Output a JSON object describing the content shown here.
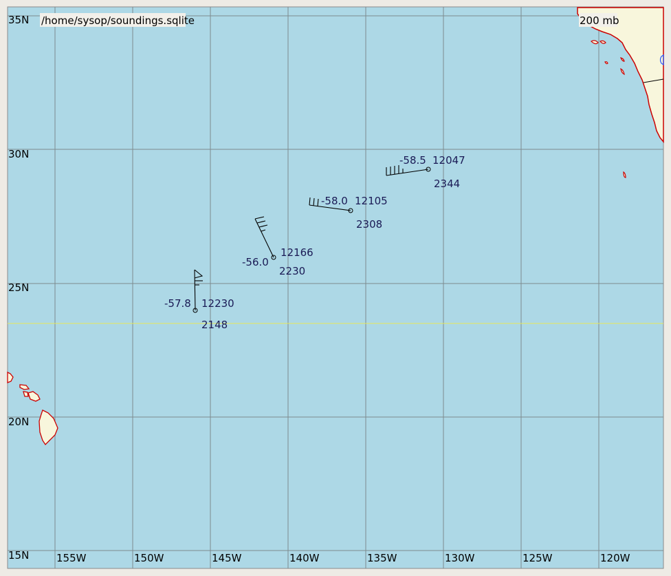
{
  "header": {
    "file_path": "/home/sysop/soundings.sqlite",
    "level": "200 mb"
  },
  "map": {
    "background_color": "#add8e6",
    "land_color": "#f8f6dc",
    "coast_color": "#cc0000",
    "grid_color": "#7d8a8e",
    "tropic_color": "#e8e85a",
    "lat_labels": [
      "35N",
      "30N",
      "25N",
      "20N",
      "15N"
    ],
    "lon_labels": [
      "155W",
      "150W",
      "145W",
      "140W",
      "135W",
      "130W",
      "125W",
      "120W"
    ]
  },
  "stations": [
    {
      "temp": "-57.8",
      "height": "12230",
      "time": "2148"
    },
    {
      "temp": "-56.0",
      "height": "12166",
      "time": "2230"
    },
    {
      "temp": "-58.0",
      "height": "12105",
      "time": "2308"
    },
    {
      "temp": "-58.5",
      "height": "12047",
      "time": "2344"
    }
  ]
}
